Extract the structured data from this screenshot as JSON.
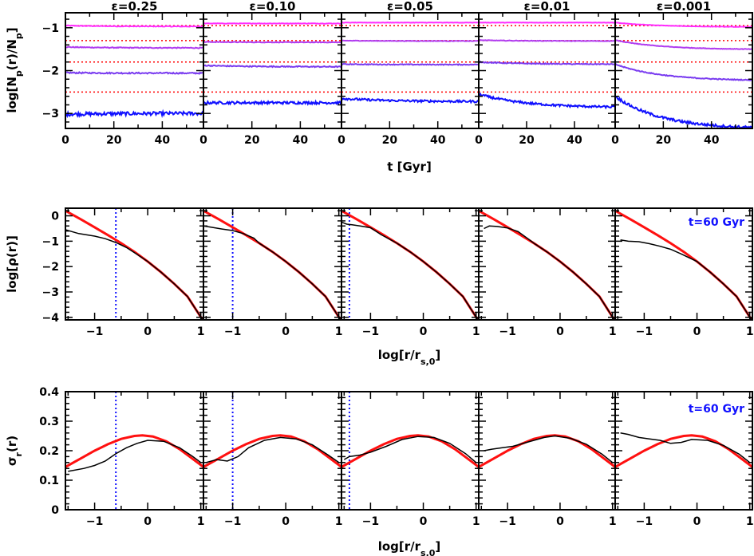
{
  "colors": {
    "magenta": "#ff2cff",
    "violet": "#b03cf0",
    "purple": "#7a3cf0",
    "blue": "#1010ff",
    "red": "#ff1010",
    "black": "#000000",
    "dotted_red": "#ff0000",
    "dotted_blue": "#1010ff"
  },
  "labels": {
    "row1_ylabel": "log[N_p(r)/N_p]",
    "row1_xlabel": "t [Gyr]",
    "row2_ylabel": "log[ρ(r)]",
    "row2_xlabel": "log[r/r_s,0]",
    "row3_ylabel": "σ_r(r)",
    "row3_xlabel": "log[r/r_s,0]",
    "annotation": "t=60 Gyr"
  },
  "chart_data": [
    {
      "type": "line",
      "name": "row1",
      "ylabel": "log[N_p(r)/N_p]",
      "xlabel": "t [Gyr]",
      "xlim": [
        0,
        57
      ],
      "ylim": [
        -3.35,
        -0.65
      ],
      "xticks": [
        0,
        20,
        40
      ],
      "yticks": [
        -1,
        -2,
        -3
      ],
      "reference_levels": [
        -0.95,
        -1.3,
        -1.8,
        -2.5
      ],
      "panels": [
        {
          "title": "ε=0.25",
          "series": [
            {
              "color": "magenta",
              "start": -0.95,
              "end": -0.97,
              "noise": 0.008
            },
            {
              "color": "violet",
              "start": -1.45,
              "end": -1.47,
              "noise": 0.01
            },
            {
              "color": "purple",
              "start": -2.05,
              "end": -2.06,
              "noise": 0.015
            },
            {
              "color": "blue",
              "start": -3.02,
              "end": -3.0,
              "noise": 0.04
            }
          ]
        },
        {
          "title": "ε=0.10",
          "series": [
            {
              "color": "magenta",
              "start": -0.9,
              "end": -0.9,
              "noise": 0.005
            },
            {
              "color": "violet",
              "start": -1.33,
              "end": -1.34,
              "noise": 0.008
            },
            {
              "color": "purple",
              "start": -1.88,
              "end": -1.91,
              "noise": 0.012
            },
            {
              "color": "blue",
              "start": -2.75,
              "end": -2.75,
              "noise": 0.03
            }
          ]
        },
        {
          "title": "ε=0.05",
          "series": [
            {
              "color": "magenta",
              "start": -0.88,
              "end": -0.88,
              "noise": 0.004
            },
            {
              "color": "violet",
              "start": -1.3,
              "end": -1.31,
              "noise": 0.006
            },
            {
              "color": "purple",
              "start": -1.85,
              "end": -1.86,
              "noise": 0.01
            },
            {
              "color": "blue",
              "start": -2.65,
              "end": -2.72,
              "noise": 0.025
            }
          ]
        },
        {
          "title": "ε=0.01",
          "series": [
            {
              "color": "magenta",
              "start": -0.88,
              "end": -0.88,
              "noise": 0.004
            },
            {
              "color": "violet",
              "start": -1.29,
              "end": -1.31,
              "noise": 0.006
            },
            {
              "color": "purple",
              "start": -1.8,
              "end": -1.85,
              "noise": 0.01
            },
            {
              "color": "blue",
              "start": -2.55,
              "end": -2.85,
              "noise": 0.025
            }
          ]
        },
        {
          "title": "ε=0.001",
          "series": [
            {
              "color": "magenta",
              "start": -0.88,
              "end": -0.98,
              "noise": 0.004
            },
            {
              "color": "violet",
              "start": -1.29,
              "end": -1.5,
              "noise": 0.006
            },
            {
              "color": "purple",
              "start": -1.85,
              "end": -2.22,
              "noise": 0.01
            },
            {
              "color": "blue",
              "start": -2.6,
              "end": -3.33,
              "noise": 0.03
            }
          ]
        }
      ]
    },
    {
      "type": "line",
      "name": "row2",
      "ylabel": "log[ρ(r)]",
      "xlabel": "log[r/r_s,0]",
      "xlim": [
        -1.55,
        1.05
      ],
      "ylim": [
        -4.1,
        0.3
      ],
      "xticks": [
        -1,
        0,
        1
      ],
      "yticks": [
        0,
        -1,
        -2,
        -3,
        -4
      ],
      "annotation": "t=60 Gyr",
      "reference_curve": {
        "color": "red",
        "x": [
          -1.55,
          -1.25,
          -1.0,
          -0.75,
          -0.5,
          -0.25,
          0.0,
          0.25,
          0.5,
          0.75,
          1.05
        ],
        "y": [
          0.2,
          -0.15,
          -0.45,
          -0.76,
          -1.08,
          -1.42,
          -1.8,
          -2.22,
          -2.68,
          -3.18,
          -4.15
        ]
      },
      "panels": [
        {
          "vline": -0.6,
          "measured": {
            "x": [
              -1.55,
              -1.3,
              -1.0,
              -0.8,
              -0.6,
              -0.4,
              -0.2
            ],
            "y": [
              -0.55,
              -0.7,
              -0.8,
              -0.9,
              -1.05,
              -1.25,
              -1.52
            ]
          }
        },
        {
          "vline": -1.0,
          "measured": {
            "x": [
              -1.55,
              -1.4,
              -1.2,
              -1.0,
              -0.8,
              -0.6
            ],
            "y": [
              -0.4,
              -0.45,
              -0.52,
              -0.58,
              -0.7,
              -0.88
            ]
          }
        },
        {
          "vline": -1.4,
          "measured": {
            "x": [
              -1.55,
              -1.45,
              -1.35,
              -1.2,
              -1.0,
              -0.8
            ],
            "y": [
              -0.25,
              -0.33,
              -0.35,
              -0.4,
              -0.47,
              -0.74
            ]
          }
        },
        {
          "vline": null,
          "measured": {
            "x": [
              -1.45,
              -1.35,
              -1.2,
              -1.0,
              -0.8,
              -0.6
            ],
            "y": [
              -0.5,
              -0.4,
              -0.42,
              -0.48,
              -0.62,
              -0.92
            ]
          }
        },
        {
          "vline": null,
          "measured": {
            "x": [
              -1.45,
              -1.3,
              -1.1,
              -0.9,
              -0.7,
              -0.5,
              -0.3
            ],
            "y": [
              -0.95,
              -1.0,
              -1.02,
              -1.1,
              -1.2,
              -1.32,
              -1.5
            ]
          }
        }
      ]
    },
    {
      "type": "line",
      "name": "row3",
      "ylabel": "σ_r(r)",
      "xlabel": "log[r/r_s,0]",
      "xlim": [
        -1.55,
        1.05
      ],
      "ylim": [
        0,
        0.4
      ],
      "xticks": [
        -1,
        0,
        1
      ],
      "yticks": [
        0,
        0.1,
        0.2,
        0.3,
        0.4
      ],
      "annotation": "t=60 Gyr",
      "reference_curve": {
        "color": "red",
        "x": [
          -1.55,
          -1.25,
          -1.0,
          -0.75,
          -0.5,
          -0.25,
          -0.1,
          0.1,
          0.35,
          0.6,
          0.85,
          1.05
        ],
        "y": [
          0.145,
          0.175,
          0.2,
          0.222,
          0.24,
          0.25,
          0.252,
          0.248,
          0.232,
          0.205,
          0.172,
          0.145
        ]
      },
      "panels": [
        {
          "vline": -0.6,
          "measured": {
            "x": [
              -1.5,
              -1.2,
              -1.0,
              -0.8,
              -0.6,
              -0.4,
              -0.2,
              0.0,
              0.3,
              0.6,
              0.85,
              1.0
            ],
            "y": [
              0.13,
              0.14,
              0.15,
              0.165,
              0.19,
              0.21,
              0.225,
              0.235,
              0.232,
              0.21,
              0.18,
              0.16
            ]
          }
        },
        {
          "vline": -1.0,
          "measured": {
            "x": [
              -1.5,
              -1.3,
              -1.1,
              -0.9,
              -0.7,
              -0.4,
              -0.1,
              0.2,
              0.5,
              0.8,
              1.0
            ],
            "y": [
              0.16,
              0.17,
              0.165,
              0.18,
              0.21,
              0.235,
              0.245,
              0.24,
              0.22,
              0.185,
              0.16
            ]
          }
        },
        {
          "vline": -1.4,
          "measured": {
            "x": [
              -1.5,
              -1.4,
              -1.2,
              -1.0,
              -0.7,
              -0.4,
              -0.1,
              0.2,
              0.5,
              0.8,
              1.0
            ],
            "y": [
              0.17,
              0.18,
              0.185,
              0.195,
              0.215,
              0.238,
              0.248,
              0.245,
              0.225,
              0.19,
              0.16
            ]
          }
        },
        {
          "vline": null,
          "measured": {
            "x": [
              -1.45,
              -1.3,
              -1.1,
              -0.9,
              -0.6,
              -0.3,
              -0.1,
              0.2,
              0.5,
              0.8,
              1.0
            ],
            "y": [
              0.2,
              0.205,
              0.21,
              0.215,
              0.23,
              0.245,
              0.25,
              0.242,
              0.222,
              0.188,
              0.16
            ]
          }
        },
        {
          "vline": null,
          "measured": {
            "x": [
              -1.45,
              -1.3,
              -1.1,
              -0.9,
              -0.7,
              -0.5,
              -0.3,
              -0.1,
              0.2,
              0.5,
              0.8,
              1.0
            ],
            "y": [
              0.26,
              0.255,
              0.245,
              0.24,
              0.235,
              0.225,
              0.228,
              0.238,
              0.235,
              0.218,
              0.188,
              0.16
            ]
          }
        }
      ]
    }
  ]
}
